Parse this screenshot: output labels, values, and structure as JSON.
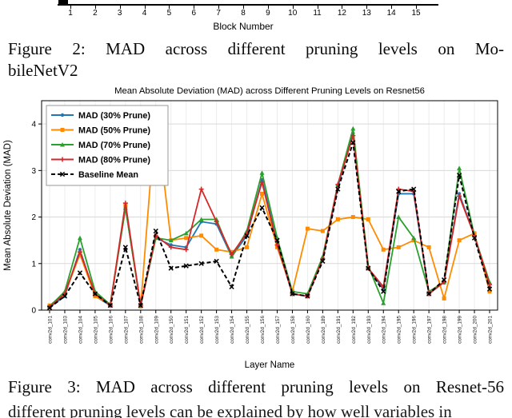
{
  "fig2_axis": {
    "ticks": [
      "1",
      "2",
      "3",
      "4",
      "5",
      "6",
      "7",
      "8",
      "9",
      "10",
      "11",
      "12",
      "13",
      "14",
      "15"
    ],
    "xlabel": "Block Number"
  },
  "captions": {
    "figure2_line1": "Figure 2: MAD across different pruning levels on Mo-",
    "figure2_line2": "bileNetV2",
    "figure3": "Figure 3: MAD across different pruning levels on Resnet-56",
    "body_fragment": "different pruning levels can be explained by how well variables in"
  },
  "chart_data": {
    "type": "line",
    "title": "Mean Absolute Deviation (MAD) across Different Pruning Levels on Resnet56",
    "xlabel": "Layer Name",
    "ylabel": "Mean Absolute Deviation (MAD)",
    "ylim": [
      0,
      4.5
    ],
    "yticks": [
      0,
      1,
      2,
      3,
      4
    ],
    "grid": true,
    "legend_position": "upper-left",
    "categories": [
      "conv2d_101",
      "conv2d_103",
      "conv2d_104",
      "conv2d_105",
      "conv2d_106",
      "conv2d_107",
      "conv2d_108",
      "conv2d_109",
      "conv2d_150",
      "conv2d_151",
      "conv2d_152",
      "conv2d_153",
      "conv2d_154",
      "conv2d_155",
      "conv2d_156",
      "conv2d_157",
      "conv2d_158",
      "conv2d_160",
      "conv2d_189",
      "conv2d_191",
      "conv2d_192",
      "conv2d_193",
      "conv2d_194",
      "conv2d_195",
      "conv2d_196",
      "conv2d_197",
      "conv2d_198",
      "conv2d_199",
      "conv2d_200",
      "conv2d_201"
    ],
    "series": [
      {
        "name": "MAD (30% Prune)",
        "color": "#1f77b4",
        "marker": "circle",
        "dash": "none",
        "values": [
          0.06,
          0.3,
          1.3,
          0.3,
          0.1,
          2.2,
          0.1,
          1.55,
          1.4,
          1.35,
          1.9,
          1.85,
          1.15,
          1.6,
          2.8,
          1.45,
          0.35,
          0.3,
          1.1,
          2.65,
          3.8,
          0.9,
          0.45,
          2.5,
          2.5,
          0.35,
          0.6,
          2.5,
          1.6,
          0.5
        ]
      },
      {
        "name": "MAD (50% Prune)",
        "color": "#ff8c00",
        "marker": "square",
        "dash": "none",
        "values": [
          0.1,
          0.35,
          1.2,
          0.3,
          0.12,
          2.25,
          0.08,
          4.25,
          1.5,
          1.55,
          1.6,
          1.3,
          1.25,
          1.35,
          2.5,
          1.35,
          0.4,
          1.75,
          1.7,
          1.95,
          2.0,
          1.95,
          1.3,
          1.35,
          1.5,
          1.35,
          0.25,
          1.5,
          1.65,
          0.4
        ]
      },
      {
        "name": "MAD (70% Prune)",
        "color": "#2ca02c",
        "marker": "triangle",
        "dash": "none",
        "values": [
          0.08,
          0.4,
          1.55,
          0.4,
          0.12,
          2.2,
          0.1,
          1.55,
          1.5,
          1.65,
          1.95,
          1.95,
          1.15,
          1.7,
          2.95,
          1.55,
          0.4,
          0.35,
          1.15,
          2.7,
          3.9,
          0.95,
          0.15,
          2.0,
          1.55,
          0.4,
          0.6,
          3.05,
          1.6,
          0.6
        ]
      },
      {
        "name": "MAD (80% Prune)",
        "color": "#d62728",
        "marker": "plus",
        "dash": "none",
        "values": [
          0.07,
          0.35,
          1.25,
          0.35,
          0.1,
          2.3,
          0.1,
          1.6,
          1.35,
          1.3,
          2.6,
          1.9,
          1.2,
          1.65,
          2.75,
          1.4,
          0.35,
          0.3,
          1.1,
          2.7,
          3.75,
          0.9,
          0.5,
          2.6,
          2.55,
          0.35,
          0.6,
          2.45,
          1.6,
          0.55
        ]
      },
      {
        "name": "Baseline Mean",
        "color": "#000000",
        "marker": "x",
        "dash": "5,3",
        "values": [
          0.05,
          0.3,
          0.8,
          0.35,
          0.1,
          1.35,
          0.1,
          1.7,
          0.9,
          0.95,
          1.0,
          1.05,
          0.5,
          1.6,
          2.2,
          1.5,
          0.35,
          0.3,
          1.05,
          2.6,
          3.6,
          0.9,
          0.4,
          2.55,
          2.6,
          0.35,
          0.65,
          2.9,
          1.55,
          0.45
        ]
      }
    ]
  },
  "colors": {
    "grid_h": "#d9d9d9",
    "grid_v": "#ececec",
    "spine": "#000000",
    "legend_border": "#999999"
  }
}
